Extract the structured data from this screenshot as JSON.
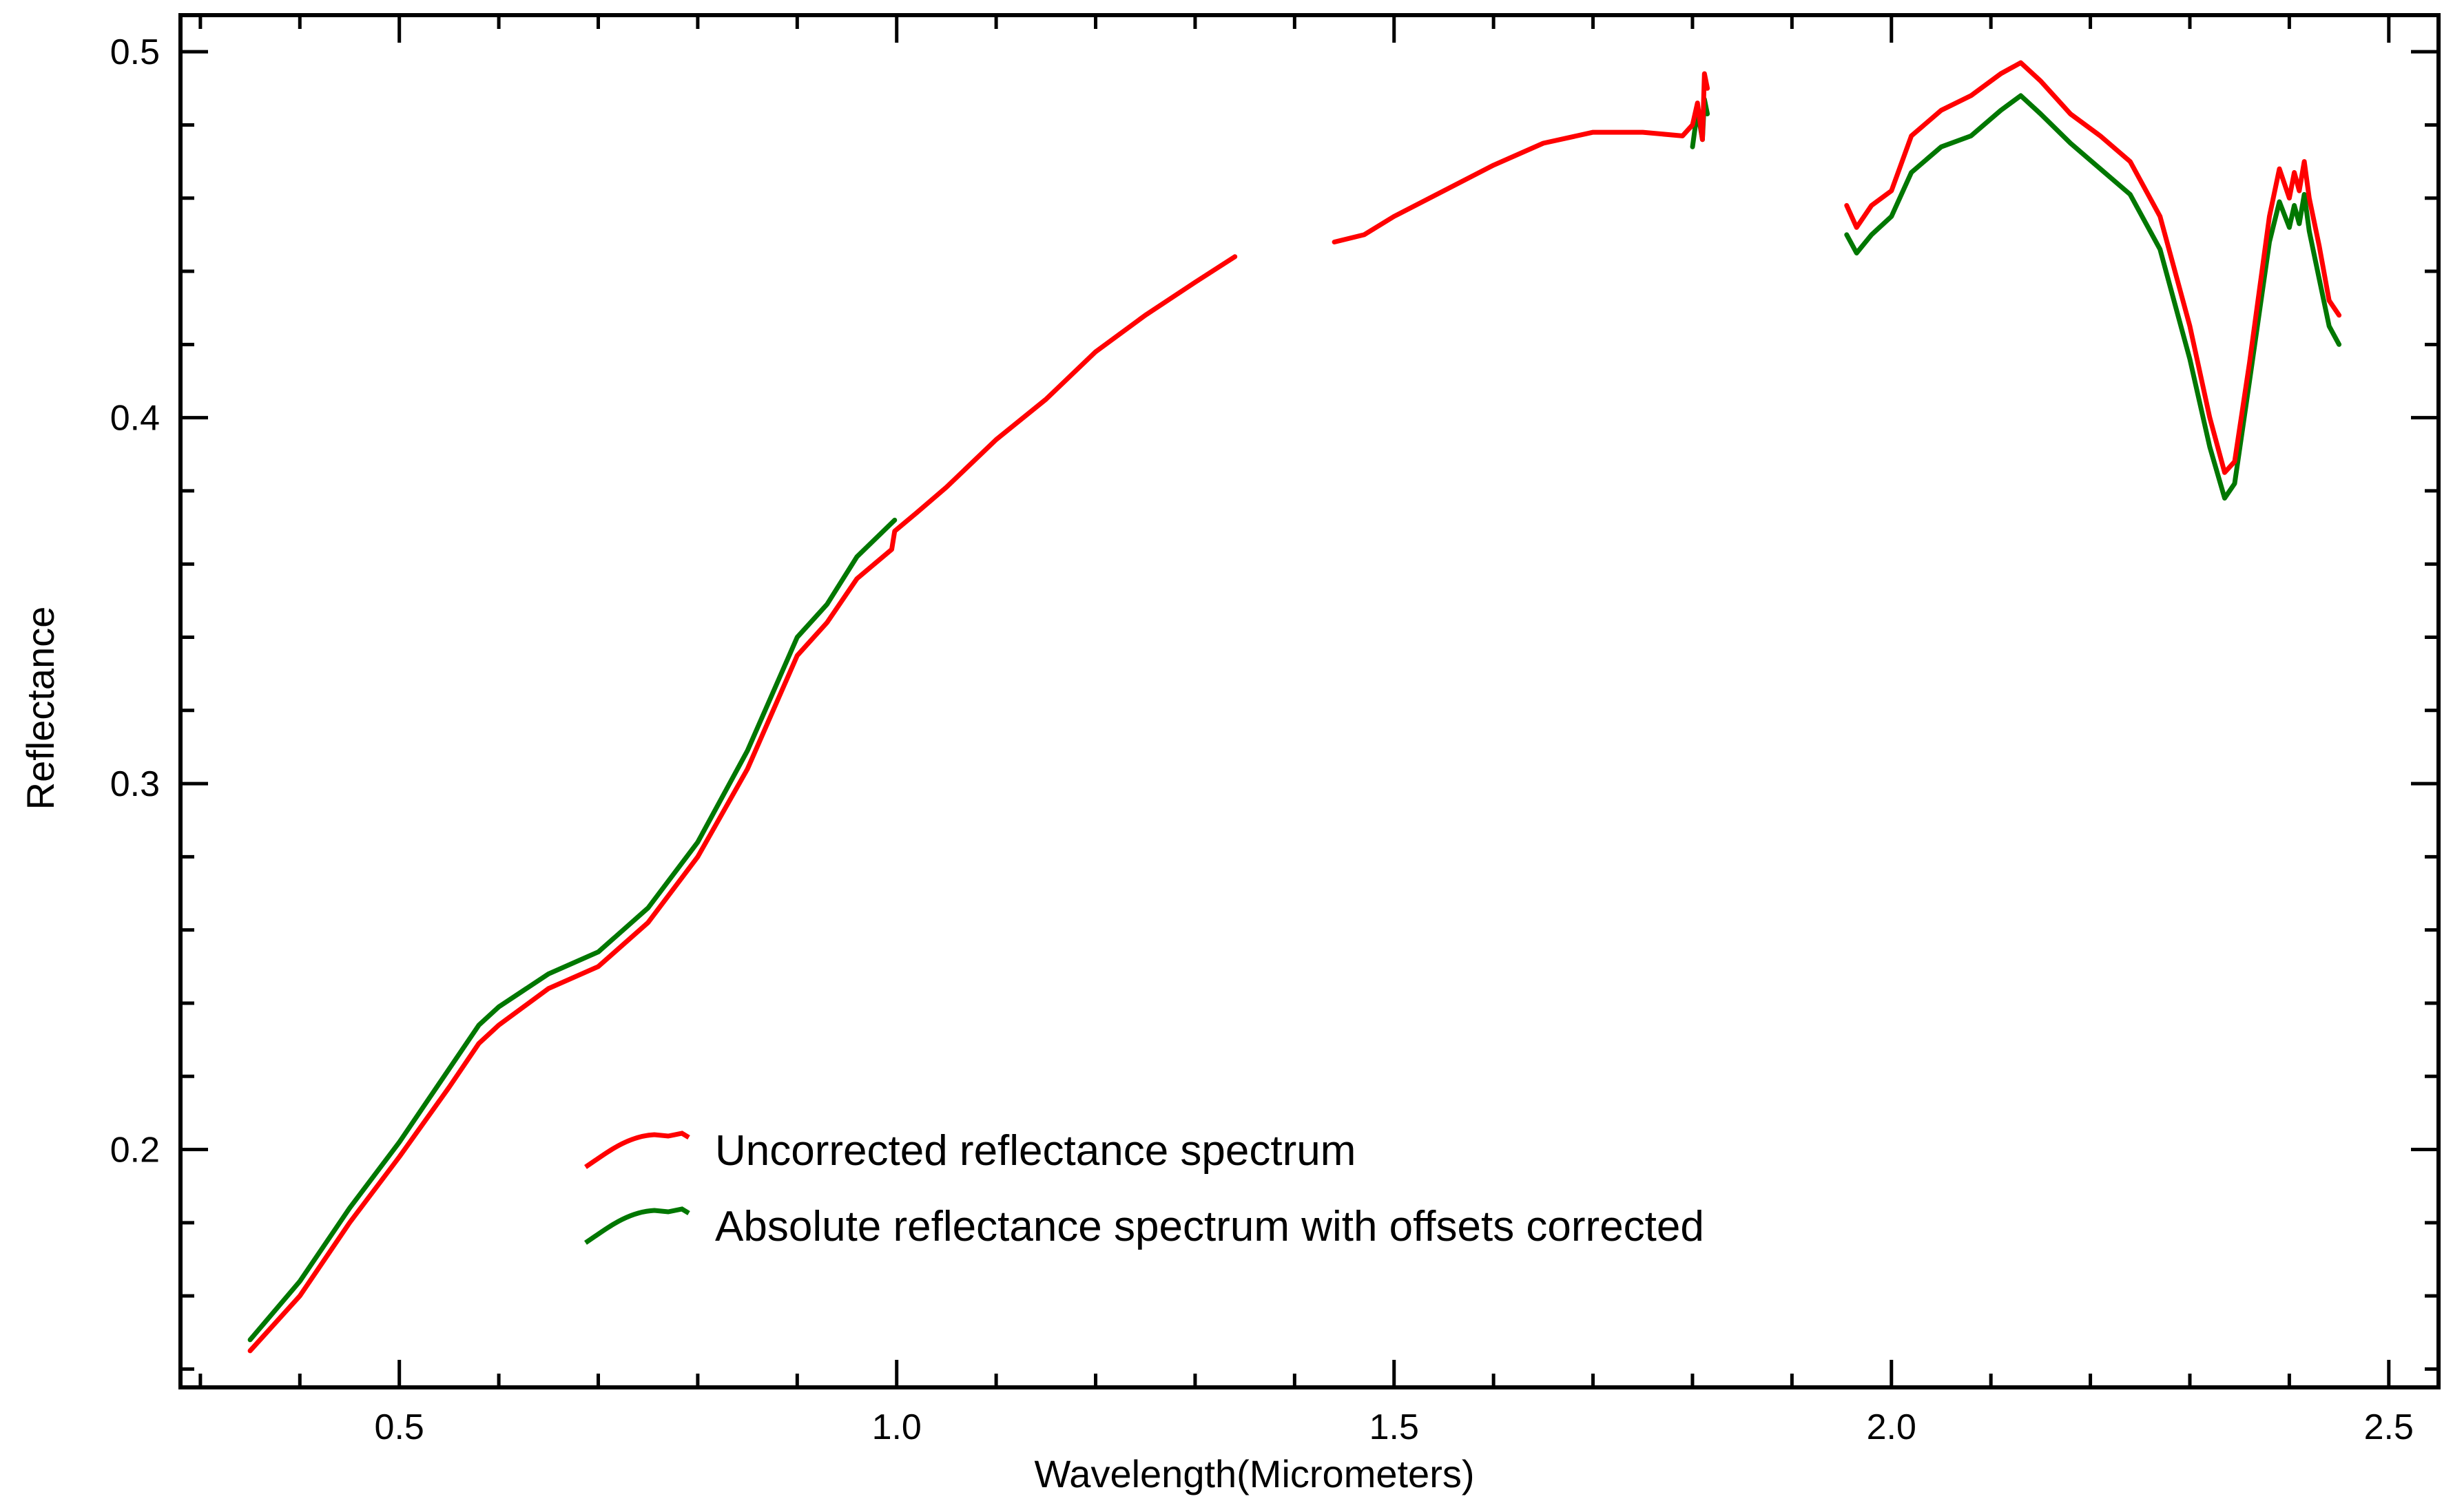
{
  "chart_data": {
    "type": "line",
    "title": "",
    "xlabel": "Wavelength(Micrometers)",
    "ylabel": "Reflectance",
    "xlim": [
      0.28,
      2.55
    ],
    "ylim": [
      0.135,
      0.51
    ],
    "xticks": [
      0.5,
      1.0,
      1.5,
      2.0,
      2.5
    ],
    "xtick_labels": [
      "0.5",
      "1.0",
      "1.5",
      "2.0",
      "2.5"
    ],
    "yticks": [
      0.2,
      0.3,
      0.4,
      0.5
    ],
    "ytick_labels": [
      "0.2",
      "0.3",
      "0.4",
      "0.5"
    ],
    "grid": false,
    "legend_position": "lower-center",
    "series": [
      {
        "name": "Uncorrected reflectance spectrum",
        "color": "#ff0000",
        "segments": [
          [
            [
              0.35,
              0.145
            ],
            [
              0.4,
              0.16
            ],
            [
              0.45,
              0.18
            ],
            [
              0.5,
              0.198
            ],
            [
              0.55,
              0.217
            ],
            [
              0.58,
              0.229
            ],
            [
              0.6,
              0.234
            ],
            [
              0.65,
              0.244
            ],
            [
              0.7,
              0.25
            ],
            [
              0.75,
              0.262
            ],
            [
              0.8,
              0.28
            ],
            [
              0.85,
              0.304
            ],
            [
              0.9,
              0.335
            ],
            [
              0.93,
              0.344
            ],
            [
              0.96,
              0.356
            ],
            [
              0.995,
              0.364
            ],
            [
              0.998,
              0.369
            ],
            [
              1.02,
              0.374
            ],
            [
              1.05,
              0.381
            ],
            [
              1.1,
              0.394
            ],
            [
              1.15,
              0.405
            ],
            [
              1.2,
              0.418
            ],
            [
              1.25,
              0.428
            ],
            [
              1.3,
              0.437
            ],
            [
              1.34,
              0.444
            ]
          ],
          [
            [
              1.44,
              0.448
            ],
            [
              1.47,
              0.45
            ],
            [
              1.5,
              0.455
            ],
            [
              1.55,
              0.462
            ],
            [
              1.6,
              0.469
            ],
            [
              1.65,
              0.475
            ],
            [
              1.7,
              0.478
            ],
            [
              1.75,
              0.478
            ],
            [
              1.79,
              0.477
            ],
            [
              1.8,
              0.48
            ],
            [
              1.805,
              0.486
            ],
            [
              1.81,
              0.476
            ],
            [
              1.812,
              0.494
            ],
            [
              1.815,
              0.49
            ]
          ],
          [
            [
              1.955,
              0.458
            ],
            [
              1.965,
              0.452
            ],
            [
              1.98,
              0.458
            ],
            [
              2.0,
              0.462
            ],
            [
              2.02,
              0.477
            ],
            [
              2.05,
              0.484
            ],
            [
              2.08,
              0.488
            ],
            [
              2.11,
              0.494
            ],
            [
              2.13,
              0.497
            ],
            [
              2.15,
              0.492
            ],
            [
              2.18,
              0.483
            ],
            [
              2.21,
              0.477
            ],
            [
              2.24,
              0.47
            ],
            [
              2.27,
              0.455
            ],
            [
              2.3,
              0.425
            ],
            [
              2.32,
              0.4
            ],
            [
              2.335,
              0.385
            ],
            [
              2.345,
              0.388
            ],
            [
              2.36,
              0.415
            ],
            [
              2.38,
              0.455
            ],
            [
              2.39,
              0.468
            ],
            [
              2.4,
              0.46
            ],
            [
              2.405,
              0.467
            ],
            [
              2.41,
              0.462
            ],
            [
              2.415,
              0.47
            ],
            [
              2.42,
              0.46
            ],
            [
              2.43,
              0.447
            ],
            [
              2.44,
              0.432
            ],
            [
              2.45,
              0.428
            ]
          ]
        ]
      },
      {
        "name": "Absolute reflectance spectrum with offsets corrected",
        "color": "#007700",
        "segments": [
          [
            [
              0.35,
              0.148
            ],
            [
              0.4,
              0.164
            ],
            [
              0.45,
              0.184
            ],
            [
              0.5,
              0.202
            ],
            [
              0.55,
              0.222
            ],
            [
              0.58,
              0.234
            ],
            [
              0.6,
              0.239
            ],
            [
              0.65,
              0.248
            ],
            [
              0.7,
              0.254
            ],
            [
              0.75,
              0.266
            ],
            [
              0.8,
              0.284
            ],
            [
              0.85,
              0.309
            ],
            [
              0.9,
              0.34
            ],
            [
              0.93,
              0.349
            ],
            [
              0.96,
              0.362
            ],
            [
              0.998,
              0.372
            ]
          ],
          [
            [
              1.8,
              0.474
            ],
            [
              1.805,
              0.484
            ],
            [
              1.81,
              0.476
            ],
            [
              1.812,
              0.487
            ],
            [
              1.815,
              0.483
            ]
          ],
          [
            [
              1.955,
              0.45
            ],
            [
              1.965,
              0.445
            ],
            [
              1.98,
              0.45
            ],
            [
              2.0,
              0.455
            ],
            [
              2.02,
              0.467
            ],
            [
              2.05,
              0.474
            ],
            [
              2.08,
              0.477
            ],
            [
              2.11,
              0.484
            ],
            [
              2.13,
              0.488
            ],
            [
              2.15,
              0.483
            ],
            [
              2.18,
              0.475
            ],
            [
              2.21,
              0.468
            ],
            [
              2.24,
              0.461
            ],
            [
              2.27,
              0.446
            ],
            [
              2.3,
              0.416
            ],
            [
              2.32,
              0.392
            ],
            [
              2.335,
              0.378
            ],
            [
              2.345,
              0.382
            ],
            [
              2.36,
              0.41
            ],
            [
              2.38,
              0.448
            ],
            [
              2.39,
              0.459
            ],
            [
              2.4,
              0.452
            ],
            [
              2.405,
              0.458
            ],
            [
              2.41,
              0.453
            ],
            [
              2.415,
              0.461
            ],
            [
              2.42,
              0.451
            ],
            [
              2.43,
              0.438
            ],
            [
              2.44,
              0.425
            ],
            [
              2.45,
              0.42
            ]
          ]
        ]
      }
    ]
  }
}
